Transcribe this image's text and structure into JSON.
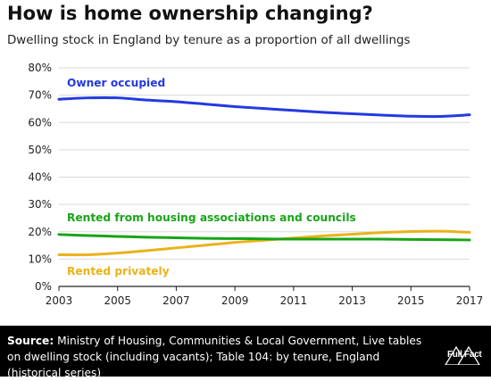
{
  "title": "How is home ownership changing?",
  "subtitle": "Dwelling stock in England by tenure as a proportion of all dwellings",
  "source": {
    "label": "Source:",
    "text": "Ministry of Housing, Communities & Local Government, Live tables on dwelling stock (including vacants); Table 104: by tenure, England (historical series)"
  },
  "logo": {
    "text": "Full Fact"
  },
  "chart_data": {
    "type": "line",
    "title": "How is home ownership changing?",
    "subtitle": "Dwelling stock in England by tenure as a proportion of all dwellings",
    "xlim": [
      2003,
      2017
    ],
    "ylim": [
      0,
      80
    ],
    "x_ticks": [
      "2003",
      "2005",
      "2007",
      "2009",
      "2011",
      "2013",
      "2015",
      "2017"
    ],
    "y_ticks": [
      "0%",
      "10%",
      "20%",
      "30%",
      "40%",
      "50%",
      "60%",
      "70%",
      "80%"
    ],
    "grid": true,
    "legend": "inline labels",
    "x": [
      2003,
      2004,
      2005,
      2006,
      2007,
      2008,
      2009,
      2010,
      2011,
      2012,
      2013,
      2014,
      2015,
      2016,
      2017
    ],
    "series": [
      {
        "name": "Owner occupied",
        "color": "#2339e0",
        "values": [
          68.5,
          69.0,
          69.0,
          68.2,
          67.6,
          66.7,
          65.8,
          65.1,
          64.4,
          63.7,
          63.2,
          62.7,
          62.3,
          62.2,
          62.8
        ]
      },
      {
        "name": "Rented from housing associations and councils",
        "color": "#18a418",
        "values": [
          19.0,
          18.6,
          18.3,
          18.0,
          17.8,
          17.6,
          17.5,
          17.4,
          17.3,
          17.3,
          17.3,
          17.3,
          17.2,
          17.1,
          17.0
        ]
      },
      {
        "name": "Rented privately",
        "color": "#eab21a",
        "values": [
          11.6,
          11.6,
          12.2,
          13.1,
          14.1,
          15.1,
          16.1,
          16.9,
          17.7,
          18.5,
          19.1,
          19.7,
          20.1,
          20.2,
          19.8
        ]
      }
    ]
  }
}
